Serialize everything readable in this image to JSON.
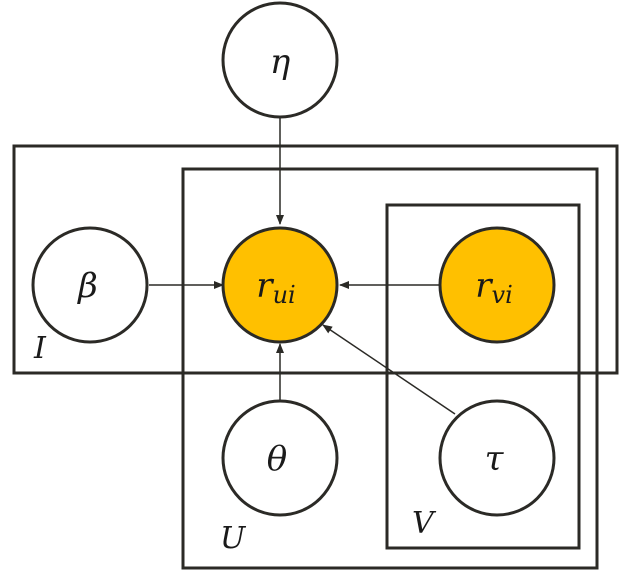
{
  "nodes": {
    "eta": {
      "symbol": "η",
      "sub": "",
      "observed": false
    },
    "beta": {
      "symbol": "β",
      "sub": "",
      "observed": false
    },
    "r_ui": {
      "symbol": "r",
      "sub": "ui",
      "observed": true
    },
    "r_vi": {
      "symbol": "r",
      "sub": "vi",
      "observed": true
    },
    "theta": {
      "symbol": "θ",
      "sub": "",
      "observed": false
    },
    "tau": {
      "symbol": "τ",
      "sub": "",
      "observed": false
    }
  },
  "plates": {
    "I": "I",
    "U": "U",
    "V": "V"
  },
  "edges": [
    {
      "from": "eta",
      "to": "r_ui"
    },
    {
      "from": "beta",
      "to": "r_ui"
    },
    {
      "from": "r_vi",
      "to": "r_ui"
    },
    {
      "from": "theta",
      "to": "r_ui"
    },
    {
      "from": "tau",
      "to": "r_ui"
    }
  ],
  "colors": {
    "observed_fill": "#FFC000",
    "latent_fill": "#FFFFFF",
    "stroke": "#2B2A26"
  }
}
